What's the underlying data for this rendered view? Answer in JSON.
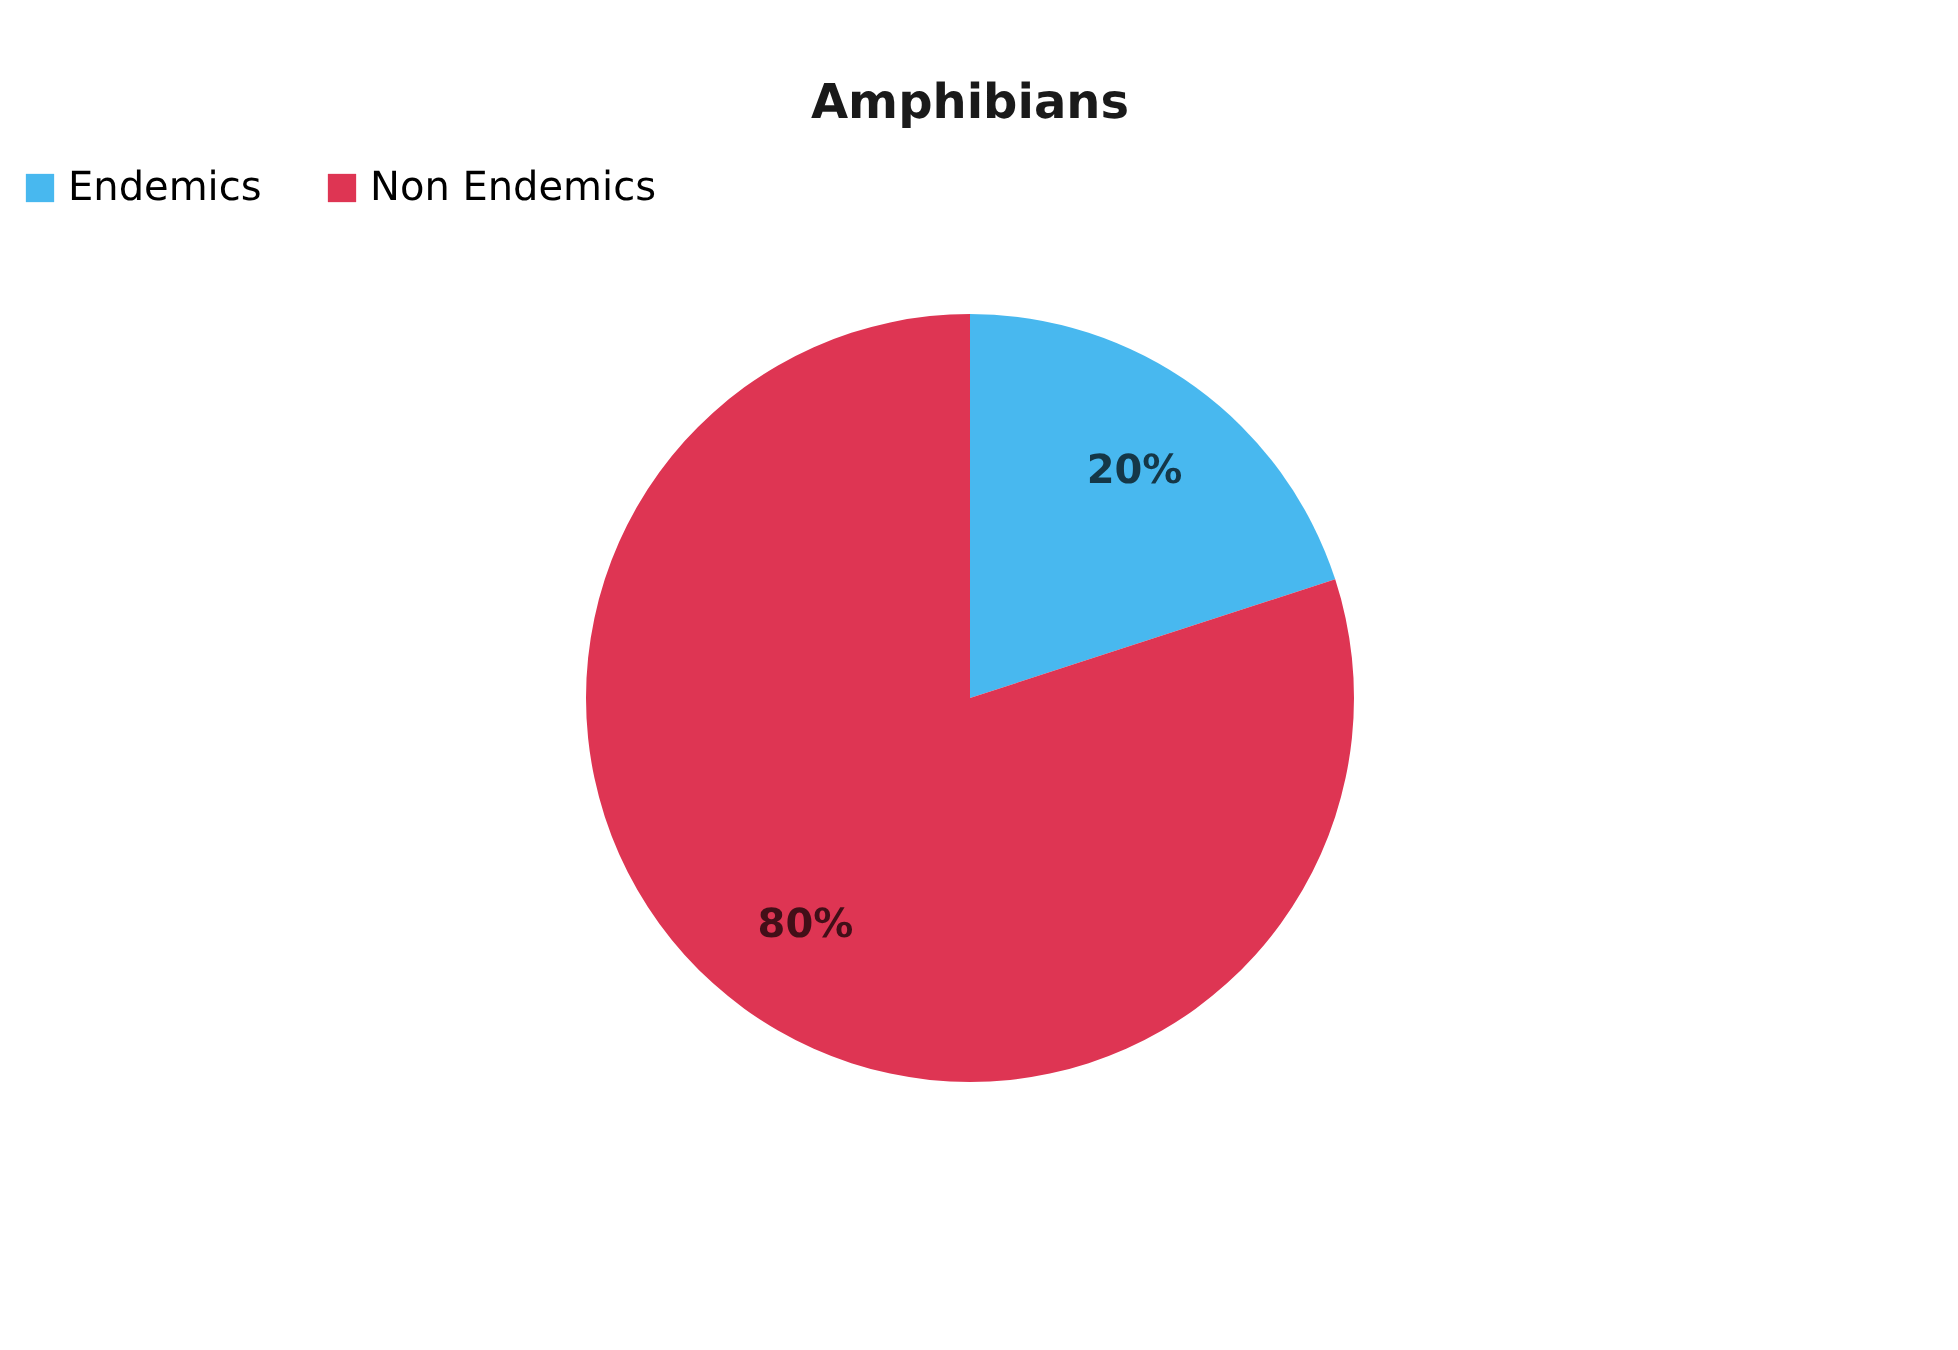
{
  "chart_data": {
    "type": "pie",
    "title": "Amphibians",
    "categories": [
      "Endemics",
      "Non Endemics"
    ],
    "values": [
      20,
      80
    ],
    "colors": [
      "#48b8ef",
      "#de3553"
    ],
    "value_labels": [
      "20%",
      "80%"
    ],
    "legend": "top"
  }
}
